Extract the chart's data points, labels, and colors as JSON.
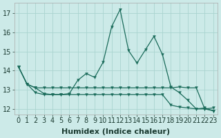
{
  "xlabel": "Humidex (Indice chaleur)",
  "background_color": "#cceae8",
  "grid_color": "#aad4d0",
  "line_color": "#1a6b5a",
  "xlim": [
    -0.5,
    23.5
  ],
  "ylim": [
    11.7,
    17.55
  ],
  "yticks": [
    12,
    13,
    14,
    15,
    16,
    17
  ],
  "xticks": [
    0,
    1,
    2,
    3,
    4,
    5,
    6,
    7,
    8,
    9,
    10,
    11,
    12,
    13,
    14,
    15,
    16,
    17,
    18,
    19,
    20,
    21,
    22,
    23
  ],
  "x": [
    0,
    1,
    2,
    3,
    4,
    5,
    6,
    7,
    8,
    9,
    10,
    11,
    12,
    13,
    14,
    15,
    16,
    17,
    18,
    19,
    20,
    21,
    22,
    23
  ],
  "line1": [
    14.2,
    13.3,
    13.1,
    12.8,
    12.75,
    12.75,
    12.8,
    13.5,
    13.85,
    13.65,
    14.45,
    16.3,
    17.2,
    15.05,
    14.4,
    15.1,
    15.8,
    14.85,
    13.15,
    12.85,
    12.45,
    12.0,
    12.05,
    11.9
  ],
  "line2": [
    14.2,
    13.3,
    13.1,
    13.1,
    13.1,
    13.1,
    13.1,
    13.1,
    13.1,
    13.1,
    13.1,
    13.1,
    13.1,
    13.1,
    13.1,
    13.1,
    13.1,
    13.1,
    13.1,
    13.15,
    13.1,
    13.1,
    12.0,
    12.05
  ],
  "line3": [
    14.2,
    13.3,
    12.85,
    12.75,
    12.75,
    12.75,
    12.75,
    12.75,
    12.75,
    12.75,
    12.75,
    12.75,
    12.75,
    12.75,
    12.75,
    12.75,
    12.75,
    12.75,
    12.2,
    12.1,
    12.05,
    12.0,
    12.0,
    11.9
  ],
  "tick_fontsize": 7,
  "label_fontsize": 8
}
